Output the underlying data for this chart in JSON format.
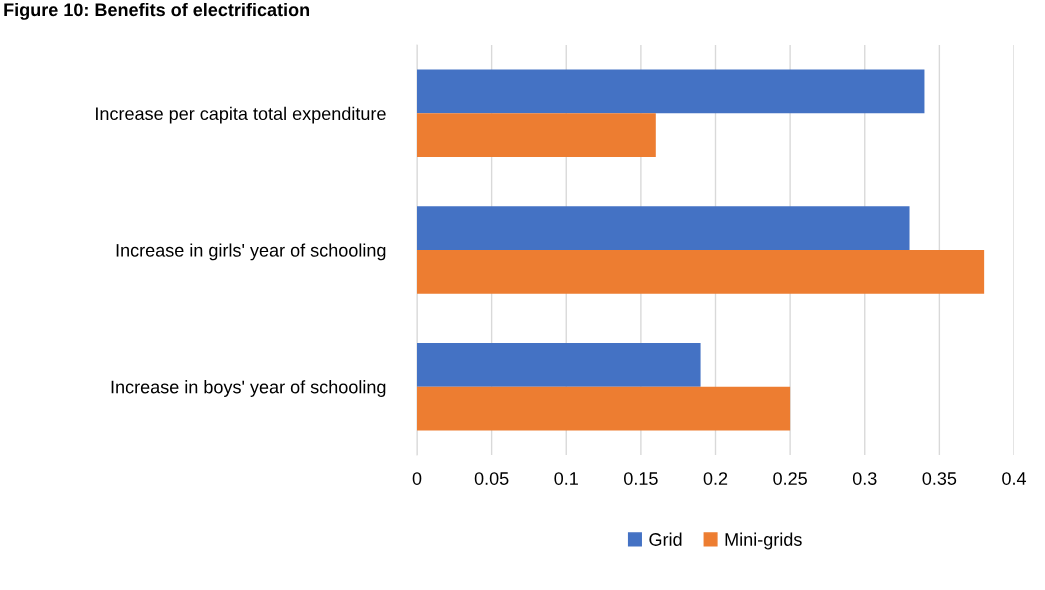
{
  "chart_data": {
    "type": "bar",
    "orientation": "horizontal",
    "title": "Figure 10: Benefits of electrification",
    "categories": [
      "Increase per capita total expenditure",
      "Increase in girls' year of schooling",
      "Increase in boys' year of schooling"
    ],
    "series": [
      {
        "name": "Grid",
        "color": "#4472c4",
        "values": [
          0.34,
          0.33,
          0.19
        ]
      },
      {
        "name": "Mini-grids",
        "color": "#ed7d31",
        "values": [
          0.16,
          0.38,
          0.25
        ]
      }
    ],
    "xlim": [
      0,
      0.4
    ],
    "xticks": [
      0,
      0.05,
      0.1,
      0.15,
      0.2,
      0.25,
      0.3,
      0.35,
      0.4
    ],
    "grid": "x",
    "legend": "bottom"
  }
}
